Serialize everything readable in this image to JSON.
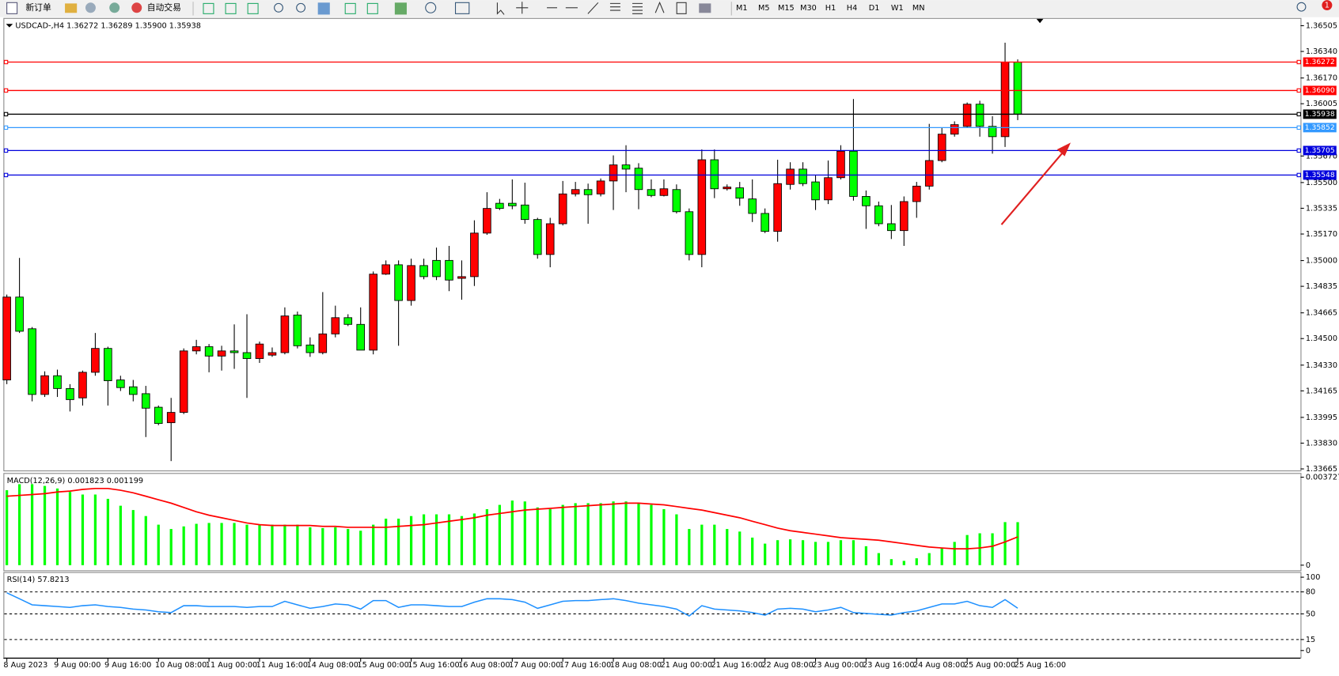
{
  "toolbar": {
    "buttons": [
      "新订单",
      "自动交易"
    ],
    "timeframes": [
      "M1",
      "M5",
      "M15",
      "M30",
      "H1",
      "H4",
      "D1",
      "W1",
      "MN"
    ],
    "badge": "1"
  },
  "chart_data": [
    {
      "type": "candlestick",
      "title": "USDCAD-,H4  1.36272 1.36289 1.35900 1.35938",
      "categories": [
        "8 Aug 2023",
        null,
        null,
        null,
        "9 Aug 00:00",
        null,
        null,
        null,
        "9 Aug 16:00",
        null,
        null,
        null,
        "10 Aug 08:00",
        null,
        null,
        null,
        "11 Aug 00:00",
        null,
        null,
        null,
        "11 Aug 16:00",
        null,
        null,
        null,
        "14 Aug 08:00",
        null,
        null,
        null,
        "15 Aug 00:00",
        null,
        null,
        null,
        "15 Aug 16:00",
        null,
        null,
        null,
        "16 Aug 08:00",
        null,
        null,
        null,
        "17 Aug 00:00",
        null,
        null,
        null,
        "17 Aug 16:00",
        null,
        null,
        null,
        "18 Aug 08:00",
        null,
        null,
        null,
        "21 Aug 00:00",
        null,
        null,
        null,
        "21 Aug 16:00",
        null,
        null,
        null,
        "22 Aug 08:00",
        null,
        null,
        null,
        "23 Aug 00:00",
        null,
        null,
        null,
        "23 Aug 16:00",
        null,
        null,
        null,
        "24 Aug 08:00",
        null,
        null,
        null,
        "25 Aug 00:00",
        null,
        null,
        null,
        "25 Aug 16:00"
      ],
      "open": [
        1.34235,
        1.34766,
        1.34563,
        1.34142,
        1.34262,
        1.3418,
        1.3412,
        1.34284,
        1.34437,
        1.34235,
        1.34191,
        1.34147,
        1.3406,
        1.33961,
        1.34027,
        1.34421,
        1.34448,
        1.34388,
        1.34421,
        1.3441,
        1.34372,
        1.34394,
        1.3441,
        1.34651,
        1.34459,
        1.3441,
        1.3453,
        1.34634,
        1.34591,
        1.34426,
        1.34913,
        1.34973,
        1.34744,
        1.34968,
        1.35001,
        1.35001,
        1.34886,
        1.34897,
        1.35176,
        1.35367,
        1.35367,
        1.35356,
        1.35263,
        1.35039,
        1.35236,
        1.35427,
        1.35455,
        1.35427,
        1.3551,
        1.35613,
        1.35592,
        1.35455,
        1.35417,
        1.35455,
        1.35313,
        1.35039,
        1.35646,
        1.3546,
        1.35466,
        1.35395,
        1.35302,
        1.35187,
        1.35488,
        1.35586,
        1.35504,
        1.35389,
        1.35531,
        1.35701,
        1.35411,
        1.35351,
        1.35236,
        1.35192,
        1.35378,
        1.35477,
        1.35641,
        1.3581,
        1.3586,
        1.36002,
        1.3586,
        1.35794,
        1.36272
      ],
      "high": [
        1.34782,
        1.35017,
        1.34574,
        1.3429,
        1.34301,
        1.34208,
        1.34295,
        1.34536,
        1.34448,
        1.34262,
        1.34235,
        1.34197,
        1.34071,
        1.3412,
        1.34437,
        1.34492,
        1.34465,
        1.34454,
        1.34591,
        1.34656,
        1.34481,
        1.34443,
        1.347,
        1.34673,
        1.34508,
        1.34798,
        1.34711,
        1.34656,
        1.347,
        1.3493,
        1.35001,
        1.35001,
        1.35012,
        1.35012,
        1.35083,
        1.35094,
        1.35001,
        1.35258,
        1.35438,
        1.35395,
        1.3552,
        1.35499,
        1.35274,
        1.35274,
        1.3551,
        1.35504,
        1.35493,
        1.35526,
        1.35674,
        1.35739,
        1.35624,
        1.3552,
        1.3552,
        1.35488,
        1.35334,
        1.35712,
        1.35712,
        1.35488,
        1.35504,
        1.3552,
        1.35334,
        1.35646,
        1.3563,
        1.3563,
        1.35548,
        1.35641,
        1.35739,
        1.36035,
        1.35449,
        1.35378,
        1.35356,
        1.35411,
        1.35504,
        1.35876,
        1.35849,
        1.35892,
        1.36013,
        1.36024,
        1.35925,
        1.36396,
        1.36289
      ],
      "low": [
        1.34208,
        1.34536,
        1.34098,
        1.34126,
        1.34126,
        1.34033,
        1.34071,
        1.34262,
        1.34071,
        1.34164,
        1.34098,
        1.33869,
        1.33945,
        1.33715,
        1.34016,
        1.34399,
        1.34284,
        1.34295,
        1.34306,
        1.3412,
        1.34344,
        1.34383,
        1.34399,
        1.34437,
        1.34383,
        1.34399,
        1.34508,
        1.3458,
        1.34426,
        1.34399,
        1.34908,
        1.34454,
        1.34711,
        1.3488,
        1.34875,
        1.34804,
        1.34749,
        1.34837,
        1.35165,
        1.35324,
        1.35329,
        1.35236,
        1.35012,
        1.34957,
        1.35225,
        1.35411,
        1.35236,
        1.35411,
        1.35324,
        1.35438,
        1.35329,
        1.35406,
        1.35411,
        1.35302,
        1.35001,
        1.34957,
        1.354,
        1.35449,
        1.35351,
        1.35247,
        1.35176,
        1.35121,
        1.35455,
        1.35477,
        1.35324,
        1.35362,
        1.3552,
        1.35384,
        1.35203,
        1.3522,
        1.35138,
        1.35094,
        1.35274,
        1.35455,
        1.3563,
        1.35794,
        1.35849,
        1.35794,
        1.35685,
        1.35728,
        1.359
      ],
      "close": [
        1.34766,
        1.34547,
        1.34142,
        1.34262,
        1.3418,
        1.34109,
        1.34284,
        1.34437,
        1.3423,
        1.34186,
        1.34142,
        1.34054,
        1.33956,
        1.34027,
        1.34421,
        1.34448,
        1.34388,
        1.34421,
        1.3441,
        1.34372,
        1.34465,
        1.3441,
        1.34645,
        1.34454,
        1.3441,
        1.3453,
        1.34634,
        1.34591,
        1.34426,
        1.34913,
        1.34973,
        1.34744,
        1.34968,
        1.34897,
        1.34897,
        1.34875,
        1.34897,
        1.35176,
        1.35334,
        1.35334,
        1.35351,
        1.35263,
        1.35039,
        1.35236,
        1.35427,
        1.35455,
        1.35422,
        1.3551,
        1.35613,
        1.35586,
        1.35455,
        1.35417,
        1.3546,
        1.35313,
        1.35039,
        1.35646,
        1.3546,
        1.35471,
        1.354,
        1.35302,
        1.35187,
        1.35493,
        1.35586,
        1.35493,
        1.35389,
        1.35531,
        1.35701,
        1.35411,
        1.35351,
        1.35236,
        1.35192,
        1.35378,
        1.35477,
        1.35641,
        1.3581,
        1.35871,
        1.36002,
        1.3586,
        1.35794,
        1.36272,
        1.35938
      ],
      "up_color": "#ff0000",
      "down_color": "#00ff00",
      "ylim": [
        1.33655,
        1.36549
      ],
      "yticks": [
        1.36505,
        {
          "value": 1.3634,
          "label": "1.36340"
        },
        {
          "value": 1.3617,
          "label": "1.36170"
        },
        1.36005,
        {
          "value": 1.3567,
          "label": "1.35670"
        },
        {
          "value": 1.355,
          "label": "1.35500"
        },
        1.35335,
        {
          "value": 1.3517,
          "label": "1.35170"
        },
        {
          "value": 1.35,
          "label": "1.35000"
        },
        1.34835,
        1.34665,
        {
          "value": 1.345,
          "label": "1.34500"
        },
        {
          "value": 1.3433,
          "label": "1.34330"
        },
        1.34165,
        1.33995,
        {
          "value": 1.3383,
          "label": "1.33830"
        },
        1.33665
      ],
      "levels": [
        {
          "value": 1.36272,
          "color": "#ff0000"
        },
        {
          "value": 1.3609,
          "label": "1.36090",
          "color": "#ff0000"
        },
        {
          "value": 1.35938,
          "color": "#000000"
        },
        {
          "value": 1.35852,
          "color": "#3399ff"
        },
        {
          "value": 1.35705,
          "color": "#0000dd"
        },
        {
          "value": 1.35548,
          "color": "#0000dd"
        }
      ]
    },
    {
      "type": "macd",
      "title": "MACD(12,26,9) 0.001823 0.001199",
      "histogram": {
        "color": "#00ff00",
        "values": [
          0.003176,
          0.003431,
          0.003431,
          0.003358,
          0.003249,
          0.003103,
          0.002993,
          0.002993,
          0.002811,
          0.002519,
          0.002336,
          0.002081,
          0.001716,
          0.001533,
          0.001643,
          0.001752,
          0.001789,
          0.001789,
          0.001789,
          0.001716,
          0.001716,
          0.001716,
          0.001716,
          0.001716,
          0.001606,
          0.00157,
          0.001606,
          0.001533,
          0.00146,
          0.001716,
          0.001971,
          0.001971,
          0.002081,
          0.002154,
          0.002154,
          0.002154,
          0.002081,
          0.00219,
          0.002373,
          0.002555,
          0.002738,
          0.002701,
          0.002446,
          0.002373,
          0.002555,
          0.002628,
          0.002628,
          0.002628,
          0.002701,
          0.002701,
          0.002628,
          0.002555,
          0.002373,
          0.002154,
          0.001533,
          0.001716,
          0.001716,
          0.001533,
          0.001424,
          0.001168,
          0.000913,
          0.001059,
          0.001095,
          0.001059,
          0.000986,
          0.000986,
          0.001059,
          0.001059,
          0.000803,
          0.000511,
          0.000256,
          0.000183,
          0.000292,
          0.000511,
          0.00073,
          0.000986,
          0.001278,
          0.001351,
          0.001351,
          0.001825,
          0.001823
        ]
      },
      "signal": {
        "color": "#ff0000",
        "values": [
          0.00292,
          0.002957,
          0.002993,
          0.00303,
          0.003103,
          0.003139,
          0.003212,
          0.003249,
          0.003249,
          0.003176,
          0.003066,
          0.00292,
          0.002774,
          0.002628,
          0.002446,
          0.002263,
          0.002117,
          0.002008,
          0.001898,
          0.001789,
          0.001716,
          0.001679,
          0.001679,
          0.001679,
          0.001679,
          0.001643,
          0.001643,
          0.001606,
          0.001606,
          0.001606,
          0.001606,
          0.001643,
          0.001679,
          0.001716,
          0.001789,
          0.001862,
          0.001935,
          0.002008,
          0.002117,
          0.00219,
          0.002263,
          0.002336,
          0.002373,
          0.002409,
          0.002446,
          0.002482,
          0.002519,
          0.002555,
          0.002592,
          0.002628,
          0.002628,
          0.002592,
          0.002555,
          0.002482,
          0.002409,
          0.002336,
          0.002227,
          0.002117,
          0.002008,
          0.001862,
          0.001716,
          0.00157,
          0.00146,
          0.001387,
          0.001314,
          0.001241,
          0.001168,
          0.001132,
          0.001095,
          0.001059,
          0.000986,
          0.000913,
          0.00084,
          0.000767,
          0.00073,
          0.000694,
          0.000694,
          0.00073,
          0.000803,
          0.000986,
          0.001199
        ]
      },
      "ylim": [
        -0.000219,
        0.003869
      ],
      "yticks": [
        0.003727,
        0
      ]
    },
    {
      "type": "line",
      "title": "RSI(14) 57.8213",
      "color": "#1e90ff",
      "values": [
        78.8,
        70.6,
        62.4,
        61.2,
        60.0,
        58.8,
        61.2,
        62.4,
        60.0,
        58.8,
        56.5,
        55.3,
        52.9,
        51.8,
        61.2,
        61.2,
        60.0,
        60.0,
        60.0,
        58.8,
        60.0,
        60.0,
        67.1,
        62.4,
        57.6,
        60.0,
        63.5,
        62.4,
        56.5,
        68.2,
        68.2,
        58.8,
        62.4,
        62.4,
        61.2,
        60.0,
        60.0,
        65.9,
        70.6,
        70.6,
        69.4,
        65.9,
        57.6,
        62.4,
        67.1,
        68.2,
        68.2,
        69.4,
        70.6,
        68.2,
        64.7,
        62.4,
        60.0,
        56.5,
        47.1,
        61.2,
        56.5,
        55.3,
        54.1,
        51.8,
        48.2,
        56.5,
        57.6,
        56.5,
        52.9,
        55.3,
        58.8,
        51.8,
        50.6,
        49.4,
        48.2,
        51.8,
        54.1,
        58.8,
        63.5,
        63.5,
        67.1,
        61.2,
        58.8,
        69.4,
        57.8213
      ],
      "ylim": [
        -9.4,
        105.9
      ],
      "yticks": [
        100,
        80,
        50,
        15,
        0
      ],
      "levels": [
        80,
        50,
        15
      ]
    }
  ]
}
